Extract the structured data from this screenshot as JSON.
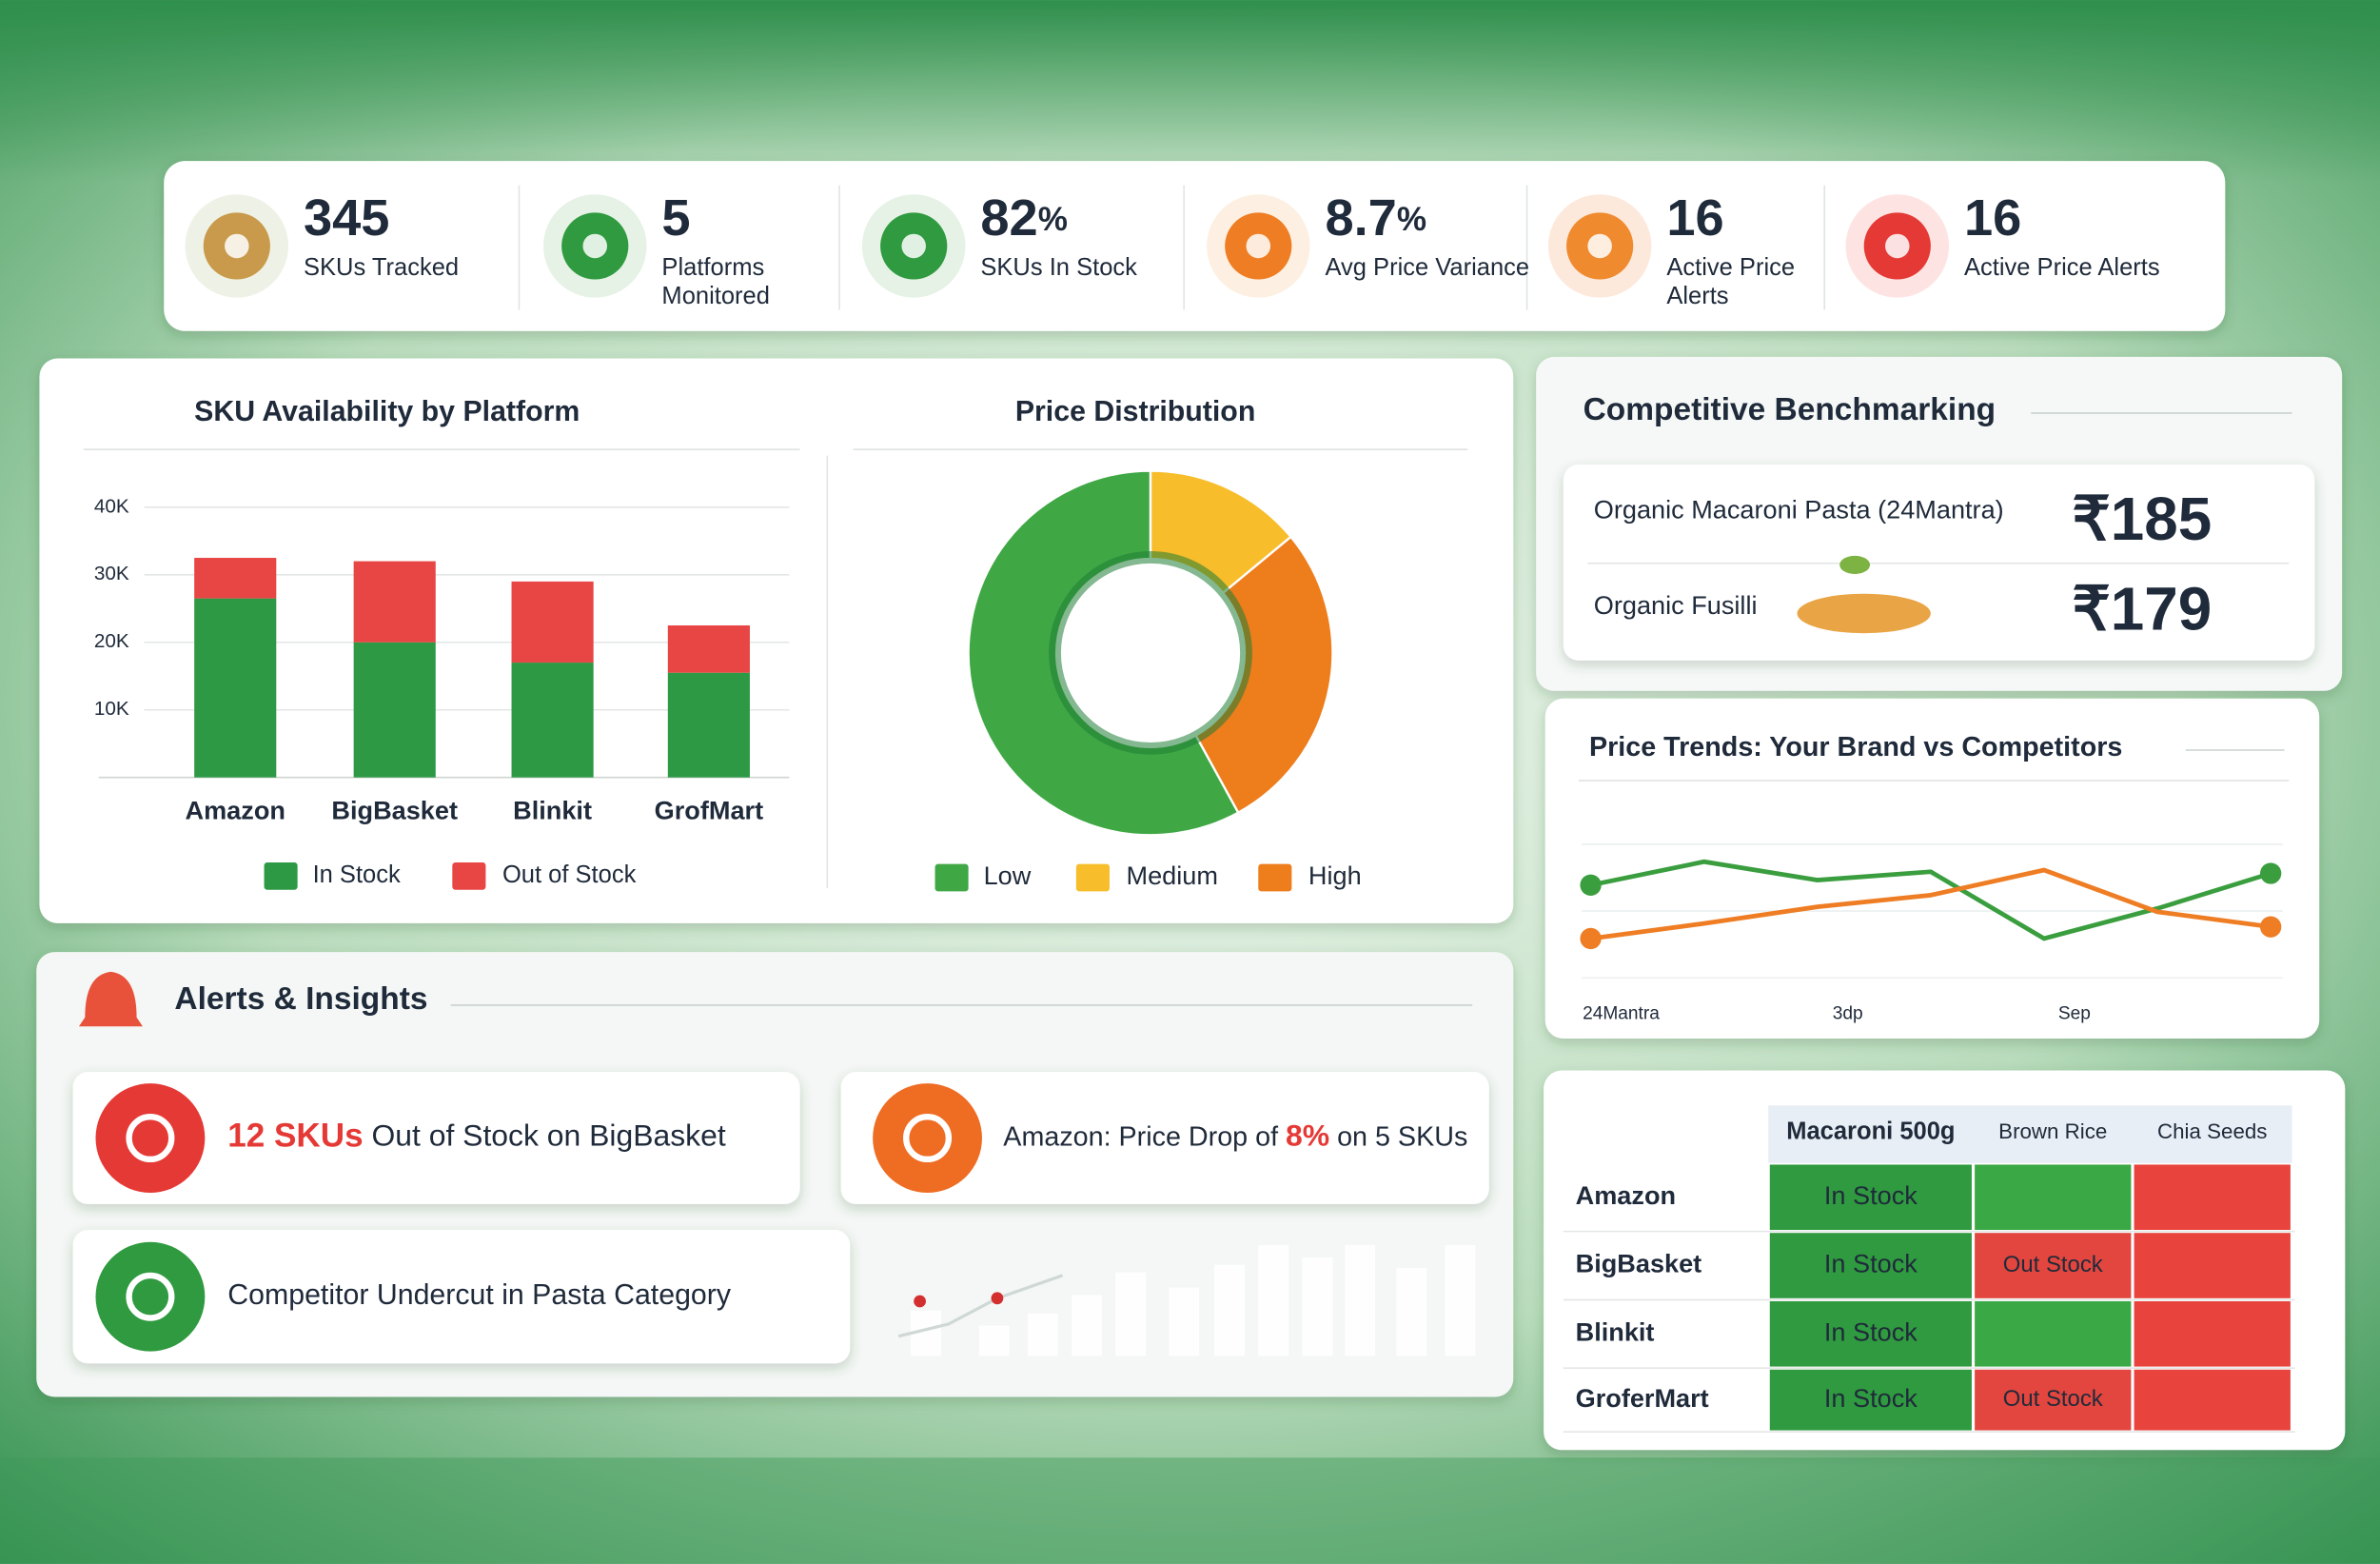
{
  "kpis": [
    {
      "value": "345",
      "label": "SKUs Tracked"
    },
    {
      "value": "5",
      "label": "Platforms Monitored"
    },
    {
      "value": "82",
      "unit": "%",
      "label": "SKUs In Stock"
    },
    {
      "value": "8.7",
      "unit": "%",
      "label": "Avg Price Variance"
    },
    {
      "value": "16",
      "label": "Active Price Alerts"
    },
    {
      "value": "16",
      "label": "Active Price Alerts"
    }
  ],
  "chart_data": [
    {
      "type": "bar",
      "stacked": true,
      "title": "SKU Availability by Platform",
      "categories": [
        "Amazon",
        "BigBasket",
        "Blinkit",
        "GrofMart"
      ],
      "series": [
        {
          "name": "In Stock",
          "color": "#2e9945",
          "values": [
            26500,
            20000,
            17000,
            15500
          ]
        },
        {
          "name": "Out of Stock",
          "color": "#e84545",
          "values": [
            6000,
            12000,
            12000,
            7000
          ]
        }
      ],
      "ylim": [
        0,
        40000
      ],
      "yticks": [
        {
          "value": 10000,
          "label": "10K"
        },
        {
          "value": 20000,
          "label": "20K"
        },
        {
          "value": 30000,
          "label": "30K"
        },
        {
          "value": 40000,
          "label": "40K"
        }
      ],
      "grid": true
    },
    {
      "type": "pie",
      "donut": true,
      "title": "Price Distribution",
      "categories": [
        "Low",
        "Medium",
        "High"
      ],
      "values": [
        58,
        14,
        28
      ],
      "colors": [
        "#3fa845",
        "#f7bd2b",
        "#ee7d1c"
      ]
    },
    {
      "type": "line",
      "title": "Price Trends: Your Brand vs Competitors",
      "categories": [
        "24Mantra",
        null,
        "3dp",
        null,
        "Sep",
        null,
        null
      ],
      "series": [
        {
          "color": "#3a9e3f",
          "values": [
            61,
            75,
            64,
            69,
            29,
            47,
            68
          ]
        },
        {
          "color": "#ee7d24",
          "values": [
            29,
            38,
            48,
            55,
            70,
            45,
            36
          ]
        }
      ],
      "ylim": [
        0,
        100
      ]
    }
  ],
  "benchmarking": {
    "title": "Competitive Benchmarking",
    "items": [
      {
        "name": "Organic Macaroni Pasta (24Mantra)",
        "price": "₹185"
      },
      {
        "name": "Organic Fusilli",
        "price": "₹179"
      }
    ]
  },
  "alerts": {
    "title": "Alerts & Insights",
    "items": [
      {
        "parts": [
          "12 SKUs",
          " Out of Stock on BigBasket"
        ],
        "highlight": 0
      },
      {
        "parts": [
          "Amazon: Price Drop of ",
          "8%",
          " on 5 SKUs"
        ],
        "highlight": 1
      },
      {
        "parts": [
          "Competitor Undercut in Pasta Category"
        ]
      }
    ]
  },
  "stock_table": {
    "columns": [
      "Macaroni 500g",
      "Brown Rice",
      "Chia Seeds"
    ],
    "rows": [
      {
        "platform": "Amazon",
        "cells": [
          {
            "label": "In Stock",
            "color": "#2f9a3f"
          },
          {
            "color": "#3aa845"
          },
          {
            "color": "#e8433c"
          }
        ]
      },
      {
        "platform": "BigBasket",
        "cells": [
          {
            "label": "In Stock",
            "color": "#2f9a3f"
          },
          {
            "label": "Out Stock",
            "color": "#e2463e"
          },
          {
            "color": "#e8433c"
          }
        ]
      },
      {
        "platform": "Blinkit",
        "cells": [
          {
            "label": "In Stock",
            "color": "#2f9a3f"
          },
          {
            "color": "#3aa845"
          },
          {
            "color": "#e8433c"
          }
        ]
      },
      {
        "platform": "GroferMart",
        "cells": [
          {
            "label": "In Stock",
            "color": "#2f9a3f"
          },
          {
            "label": "Out Stock",
            "color": "#e2463e"
          },
          {
            "color": "#e8433c"
          }
        ]
      }
    ]
  }
}
